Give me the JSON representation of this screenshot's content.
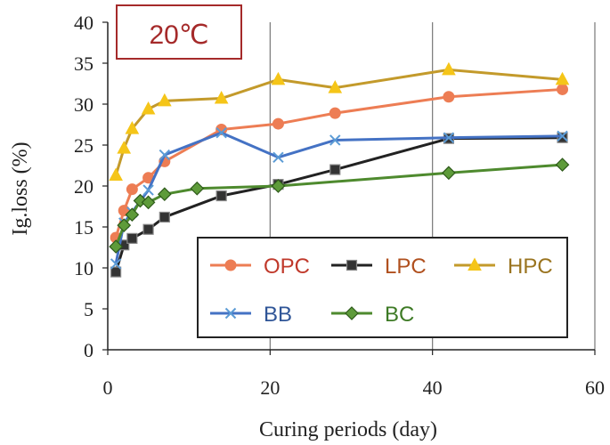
{
  "chart_data": {
    "type": "line",
    "annotation": "20℃",
    "xlabel": "Curing periods (day)",
    "ylabel": "Ig.loss (%)",
    "xlim": [
      0,
      60
    ],
    "ylim": [
      0,
      40
    ],
    "xticks": [
      0,
      20,
      40,
      60
    ],
    "yticks": [
      0,
      5,
      10,
      15,
      20,
      25,
      30,
      35,
      40
    ],
    "grid": "vertical",
    "legend_position": "bottom-right",
    "series": [
      {
        "name": "OPC",
        "color": "#ED7D54",
        "marker": "circle",
        "x": [
          1,
          2,
          3,
          5,
          7,
          14,
          21,
          28,
          42,
          56
        ],
        "y": [
          13.7,
          17.0,
          19.6,
          21.0,
          23.0,
          26.9,
          27.6,
          28.9,
          30.9,
          31.8
        ]
      },
      {
        "name": "LPC",
        "color": "#222222",
        "marker": "square",
        "x": [
          1,
          2,
          3,
          5,
          7,
          14,
          21,
          28,
          42,
          56
        ],
        "y": [
          9.5,
          12.8,
          13.6,
          14.7,
          16.2,
          18.8,
          20.2,
          22.0,
          25.8,
          25.9
        ]
      },
      {
        "name": "HPC",
        "color": "#C39A2B",
        "marker": "triangle",
        "x": [
          1,
          2,
          3,
          5,
          7,
          14,
          21,
          28,
          42,
          56
        ],
        "y": [
          21.3,
          24.6,
          27.0,
          29.4,
          30.4,
          30.7,
          33.0,
          32.0,
          34.2,
          33.0
        ]
      },
      {
        "name": "BB",
        "color": "#4472C4",
        "marker": "x",
        "x": [
          1,
          2,
          3,
          5,
          7,
          14,
          21,
          28,
          42,
          56
        ],
        "y": [
          10.5,
          15.5,
          16.8,
          19.5,
          23.8,
          26.5,
          23.5,
          25.6,
          25.9,
          26.1
        ]
      },
      {
        "name": "BC",
        "color": "#4E8A2E",
        "marker": "diamond",
        "x": [
          1,
          2,
          3,
          4,
          5,
          7,
          11,
          21,
          42,
          56
        ],
        "y": [
          12.6,
          15.2,
          16.5,
          18.2,
          18.0,
          19.0,
          19.7,
          20.0,
          21.6,
          22.6
        ]
      }
    ],
    "legend_rows": [
      [
        "OPC",
        "LPC",
        "HPC"
      ],
      [
        "BB",
        "BC"
      ]
    ]
  },
  "colors": {
    "annotation_border": "#A52A2A",
    "annotation_text": "#A52A2A",
    "grid": "#777777",
    "legend_label_OPC": "#C0392B",
    "legend_label_LPC": "#B0501E",
    "legend_label_HPC": "#9A7420",
    "legend_label_BB": "#2F5597",
    "legend_label_BC": "#3D7A25"
  }
}
